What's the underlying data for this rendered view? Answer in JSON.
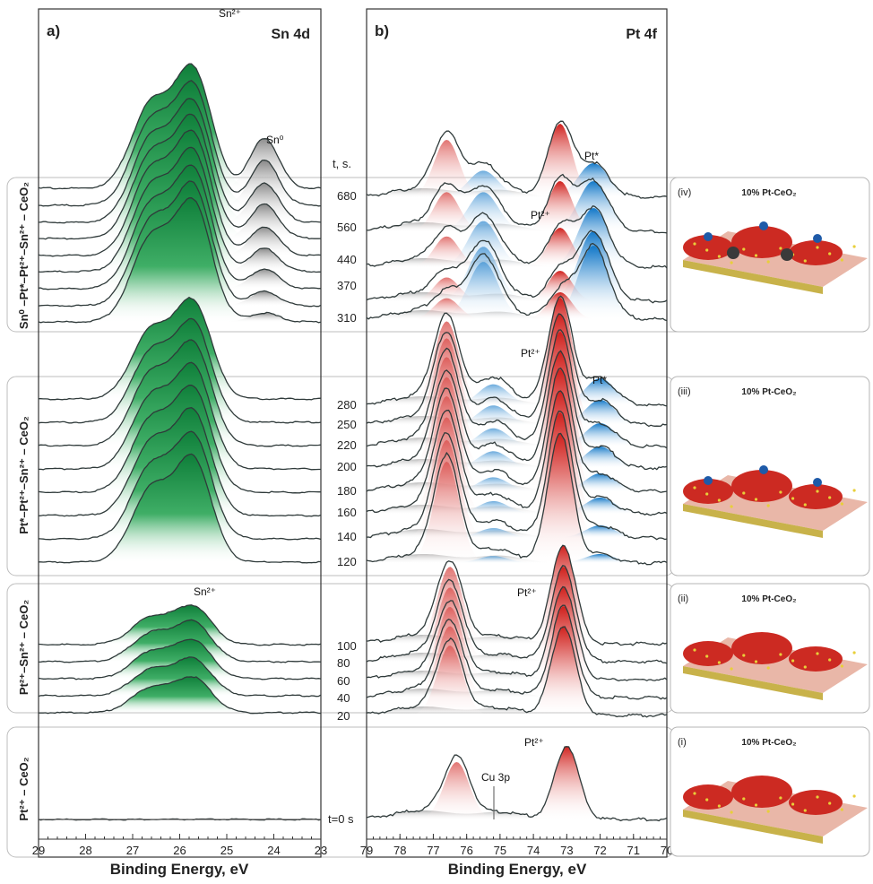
{
  "chart_data": [
    {
      "type": "line",
      "panel_label": "a)",
      "title": "Sn 4d",
      "xlabel": "Binding Energy, eV",
      "xlim": [
        29,
        23
      ],
      "x_reversed": true,
      "x_ticks": [
        "29",
        "28",
        "27",
        "26",
        "25",
        "24",
        "23"
      ],
      "stages": [
        {
          "label": "Sn⁰ –Pt*–Pt²⁺–Sn²⁺ – CeO₂",
          "times_s": [
            310,
            370,
            440,
            560,
            680
          ],
          "traces": 9,
          "components": [
            {
              "name": "Sn²⁺",
              "center_ev": 25.8,
              "color": "#1e9a4c"
            },
            {
              "name": "Sn⁰",
              "center_ev": 24.2,
              "color": "#9a9a9a"
            }
          ]
        },
        {
          "label": "Pt*–Pt²⁺–Sn²⁺ – CeO₂",
          "times_s": [
            120,
            140,
            160,
            180,
            200,
            220,
            250,
            280
          ],
          "traces": 8,
          "components": [
            {
              "name": "Sn²⁺",
              "center_ev": 25.8,
              "color": "#1e9a4c"
            }
          ]
        },
        {
          "label": "Pt²⁺–Sn²⁺ – CeO₂",
          "times_s": [
            20,
            40,
            60,
            80,
            100
          ],
          "traces": 5,
          "components": [
            {
              "name": "Sn²⁺",
              "center_ev": 25.8,
              "color": "#1e9a4c"
            }
          ]
        },
        {
          "label": "Pt²⁺ – CeO₂",
          "times_s": [
            0
          ],
          "traces": 1,
          "components": []
        }
      ],
      "annotations": [
        "Sn²⁺",
        "Sn⁰",
        "Sn²⁺"
      ]
    },
    {
      "type": "line",
      "panel_label": "b)",
      "title": "Pt 4f",
      "xlabel": "Binding Energy, eV",
      "xlim": [
        79,
        70
      ],
      "x_reversed": true,
      "x_ticks": [
        "79",
        "78",
        "77",
        "76",
        "75",
        "74",
        "73",
        "72",
        "71",
        "70"
      ],
      "time_header": "t, s.",
      "stages": [
        {
          "time_labels": [
            "680",
            "560",
            "440",
            "370",
            "310"
          ],
          "components": [
            {
              "name": "Pt²⁺",
              "centers_ev": [
                76.6,
                73.2
              ],
              "color": "#d8312c"
            },
            {
              "name": "Pt*",
              "centers_ev": [
                75.5,
                72.2
              ],
              "color": "#1c86cf"
            }
          ]
        },
        {
          "time_labels": [
            "280",
            "250",
            "220",
            "200",
            "180",
            "160",
            "140",
            "120"
          ],
          "components": [
            {
              "name": "Pt²⁺",
              "centers_ev": [
                76.6,
                73.2
              ],
              "color": "#d8312c"
            },
            {
              "name": "Pt*",
              "centers_ev": [
                75.2,
                72.0
              ],
              "color": "#1c86cf"
            }
          ]
        },
        {
          "time_labels": [
            "100",
            "80",
            "60",
            "40",
            "20"
          ],
          "components": [
            {
              "name": "Pt²⁺",
              "centers_ev": [
                76.5,
                73.1
              ],
              "color": "#d8312c"
            }
          ]
        },
        {
          "time_labels": [
            "t=0 s"
          ],
          "components": [
            {
              "name": "Pt²⁺",
              "centers_ev": [
                76.3,
                73.0
              ],
              "color": "#d8312c"
            }
          ],
          "extra_annotation": "Cu 3p"
        }
      ],
      "annotations": [
        "Pt²⁺",
        "Pt*",
        "Pt²⁺",
        "Pt*",
        "Pt²⁺",
        "Pt²⁺",
        "Cu 3p"
      ]
    }
  ],
  "insets": [
    {
      "tag": "(iv)",
      "title": "10% Pt-CeO₂"
    },
    {
      "tag": "(iii)",
      "title": "10% Pt-CeO₂"
    },
    {
      "tag": "(ii)",
      "title": "10% Pt-CeO₂"
    },
    {
      "tag": "(i)",
      "title": "10% Pt-CeO₂"
    }
  ],
  "colors": {
    "sn2": "#1e9a4c",
    "sn0": "#9a9a9a",
    "pt2": "#d8312c",
    "ptstar": "#1c86cf",
    "background": "#bdbdbd"
  }
}
